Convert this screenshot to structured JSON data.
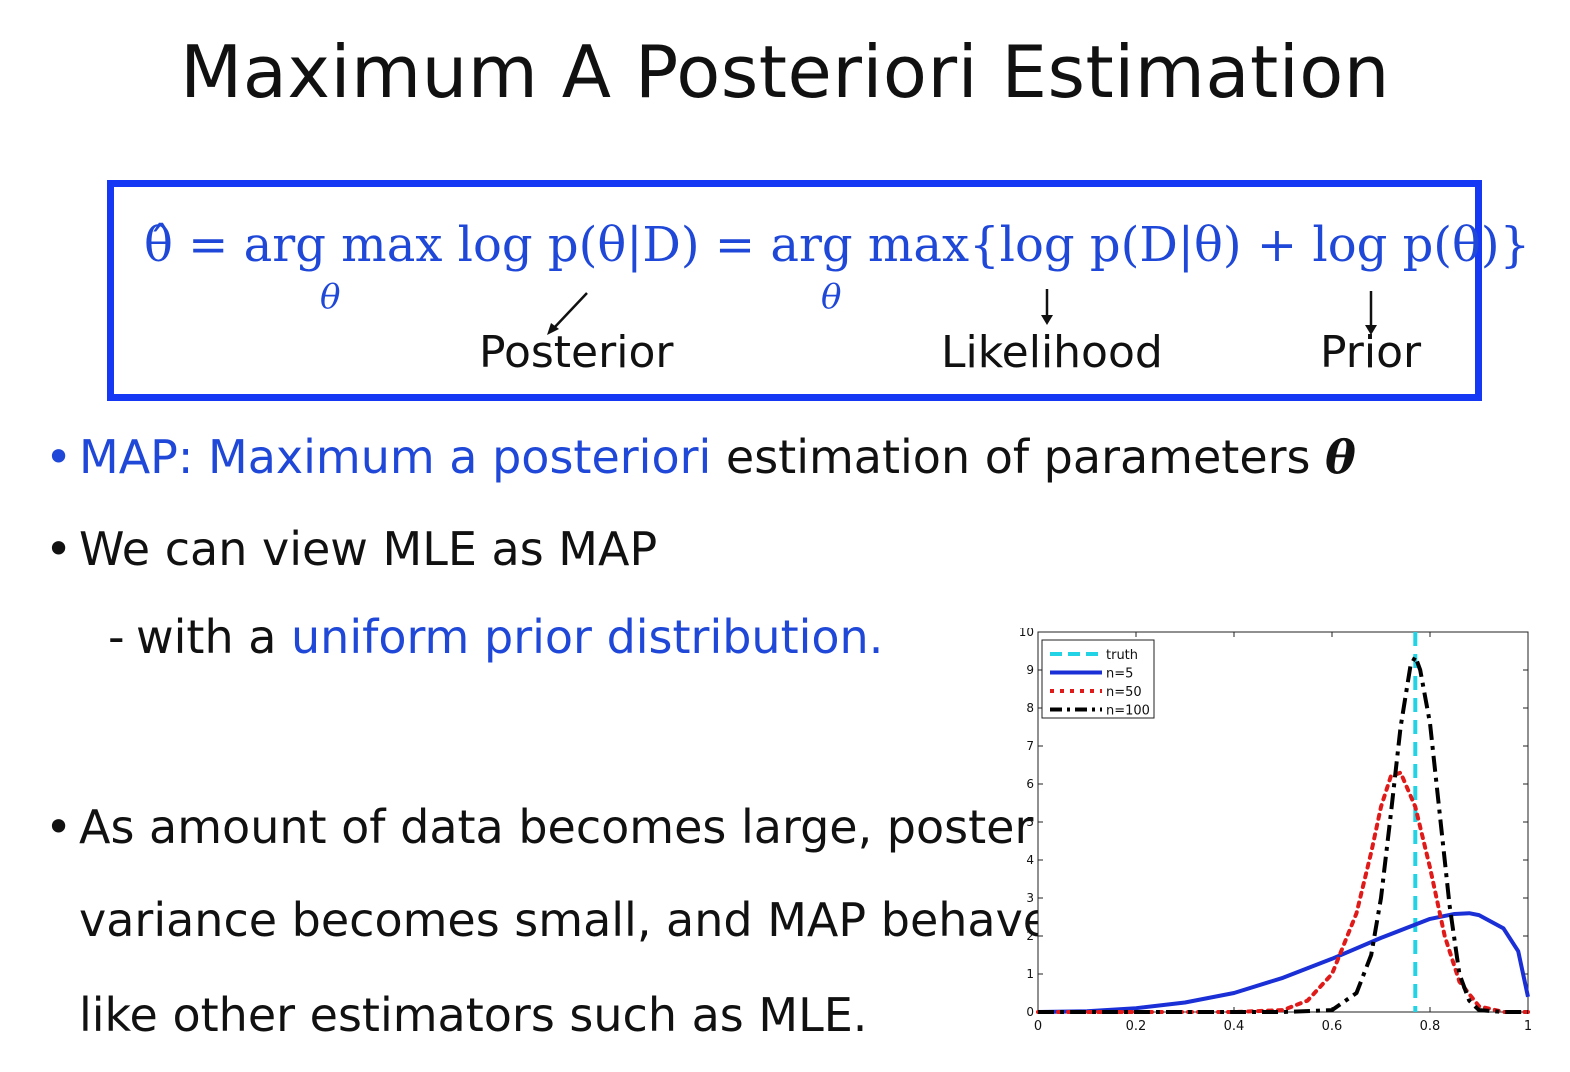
{
  "slide": {
    "title": "Maximum A Posteriori Estimation"
  },
  "formula": {
    "text": "θ̂ = arg max log p(θ|D) = arg max{log p(D|θ) + log p(θ)}",
    "sub_theta_1": "θ",
    "sub_theta_2": "θ",
    "annotations": {
      "posterior": "Posterior",
      "likelihood": "Likelihood",
      "prior": "Prior"
    }
  },
  "bullets": {
    "b1_blue": "MAP: Maximum a posteriori",
    "b1_rest": " estimation of parameters ",
    "b1_theta": "θ",
    "b2": "We can view MLE as MAP",
    "b2_sub_prefix": "with a ",
    "b2_sub_blue": "uniform prior distribution.",
    "b3_line1": "As amount of data becomes large, posterior",
    "b3_line2": "variance becomes small, and MAP behaves",
    "b3_line3": "like other estimators such as MLE.",
    "bullet_char": "•",
    "dash_char": "-"
  },
  "colors": {
    "accent_blue": "#1f48d8",
    "box_border": "#1538f5"
  },
  "chart_data": {
    "type": "line",
    "xlim": [
      0,
      1
    ],
    "ylim": [
      0,
      10
    ],
    "x_ticks": [
      "0",
      "0.2",
      "0.4",
      "0.6",
      "0.8",
      "1"
    ],
    "y_ticks": [
      "0",
      "1",
      "2",
      "3",
      "4",
      "5",
      "6",
      "7",
      "8",
      "9",
      "10"
    ],
    "legend_position": "top-left",
    "truth_x": 0.77,
    "series": [
      {
        "name": "truth",
        "color": "#22d3e6",
        "style": "dashed",
        "vertical_at": 0.77
      },
      {
        "name": "n=5",
        "color": "#1a2fd6",
        "style": "solid",
        "x": [
          0,
          0.1,
          0.2,
          0.3,
          0.4,
          0.5,
          0.6,
          0.7,
          0.75,
          0.8,
          0.85,
          0.88,
          0.9,
          0.95,
          0.98,
          1.0
        ],
        "y": [
          0,
          0.02,
          0.1,
          0.25,
          0.5,
          0.9,
          1.4,
          1.95,
          2.2,
          2.45,
          2.58,
          2.6,
          2.55,
          2.2,
          1.6,
          0.4
        ]
      },
      {
        "name": "n=50",
        "color": "#e01919",
        "style": "dotted",
        "x": [
          0,
          0.4,
          0.5,
          0.55,
          0.6,
          0.65,
          0.68,
          0.7,
          0.72,
          0.74,
          0.77,
          0.8,
          0.83,
          0.86,
          0.9,
          0.95,
          1.0
        ],
        "y": [
          0,
          0,
          0.05,
          0.3,
          1.0,
          2.6,
          4.2,
          5.4,
          6.2,
          6.3,
          5.4,
          3.8,
          2.0,
          0.8,
          0.15,
          0,
          0
        ]
      },
      {
        "name": "n=100",
        "color": "#000000",
        "style": "dashdot",
        "x": [
          0,
          0.5,
          0.6,
          0.65,
          0.68,
          0.7,
          0.72,
          0.74,
          0.76,
          0.77,
          0.78,
          0.8,
          0.82,
          0.84,
          0.86,
          0.88,
          0.9,
          0.95,
          1.0
        ],
        "y": [
          0,
          0,
          0.05,
          0.5,
          1.5,
          3.0,
          5.2,
          7.5,
          9.1,
          9.35,
          9.0,
          7.6,
          5.2,
          2.8,
          1.0,
          0.3,
          0.05,
          0,
          0
        ]
      }
    ]
  }
}
